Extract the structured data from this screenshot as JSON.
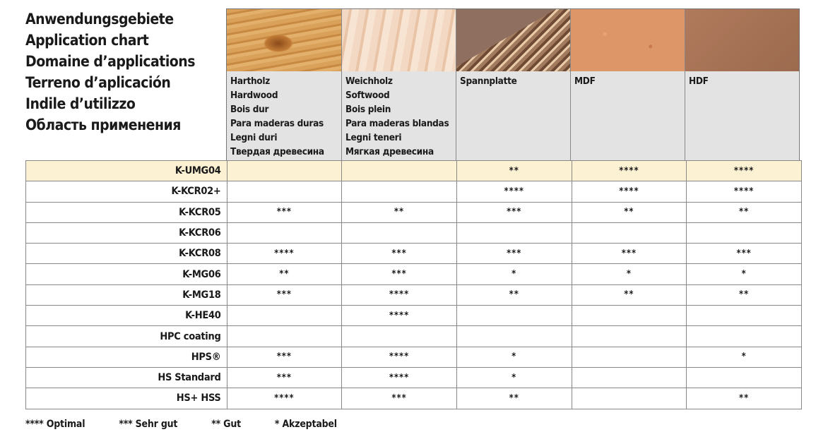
{
  "titles": [
    "Anwendungsgebiete",
    "Application chart",
    "Domaine d’applications",
    "Terreno d’aplicación",
    "Indile d’utilizzo",
    "Область применения"
  ],
  "materials": [
    {
      "lines": [
        "Hartholz",
        "Hardwood",
        "Bois dur",
        "Para maderas duras",
        "Legni duri",
        "Твердая древесина"
      ],
      "texture": "hardwood"
    },
    {
      "lines": [
        "Weichholz",
        "Softwood",
        "Bois plein",
        "Para maderas blandas",
        "Legni teneri",
        "Мягкая древесина"
      ],
      "texture": "softwood"
    },
    {
      "lines": [
        "Spannplatte"
      ],
      "texture": "chipboard"
    },
    {
      "lines": [
        "MDF"
      ],
      "texture": "mdf"
    },
    {
      "lines": [
        "HDF"
      ],
      "texture": "hdf"
    }
  ],
  "highlight_color": "#fdf1d4",
  "rows": [
    {
      "name": "K-UMG04",
      "values": [
        "",
        "",
        "**",
        "****",
        "****"
      ],
      "highlighted": true
    },
    {
      "name": "K-KCR02+",
      "values": [
        "",
        "",
        "****",
        "****",
        "****"
      ]
    },
    {
      "name": "K-KCR05",
      "values": [
        "***",
        "**",
        "***",
        "**",
        "**"
      ]
    },
    {
      "name": "K-KCR06",
      "values": [
        "",
        "",
        "",
        "",
        ""
      ]
    },
    {
      "name": "K-KCR08",
      "values": [
        "****",
        "***",
        "***",
        "***",
        "***"
      ]
    },
    {
      "name": "K-MG06",
      "values": [
        "**",
        "***",
        "*",
        "*",
        "*"
      ]
    },
    {
      "name": "K-MG18",
      "values": [
        "***",
        "****",
        "**",
        "**",
        "**"
      ]
    },
    {
      "name": "K-HE40",
      "values": [
        "",
        "****",
        "",
        "",
        ""
      ]
    },
    {
      "name": "HPC coating",
      "values": [
        "",
        "",
        "",
        "",
        ""
      ]
    },
    {
      "name": "HPS®",
      "values": [
        "***",
        "****",
        "*",
        "",
        "*"
      ]
    },
    {
      "name": "HS Standard",
      "values": [
        "***",
        "****",
        "*",
        "",
        ""
      ]
    },
    {
      "name": "HS+ HSS",
      "values": [
        "****",
        "***",
        "**",
        "",
        "**"
      ]
    }
  ],
  "legend": [
    "**** Optimal",
    "*** Sehr gut",
    "** Gut",
    "* Akzeptabel"
  ]
}
